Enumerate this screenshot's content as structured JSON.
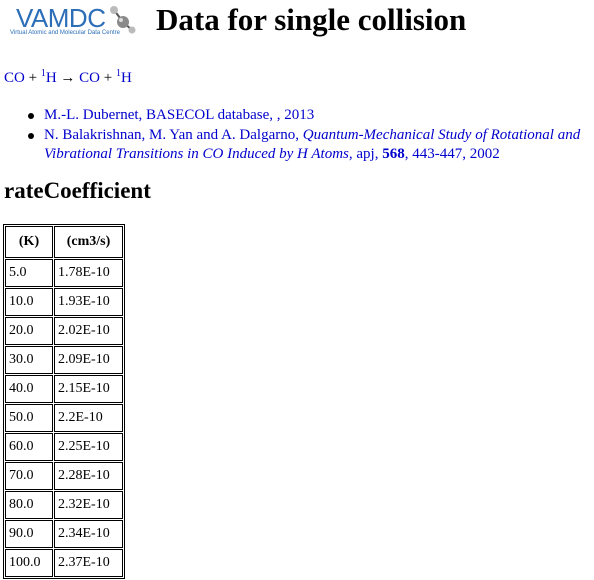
{
  "logo": {
    "text": "VAMDC",
    "subtitle": "Virtual Atomic and Molecular Data Centre"
  },
  "title": "Data for single collision",
  "process": {
    "reactant1": "CO",
    "plus1": "+",
    "sup1": "1",
    "reactant2": "H",
    "arrow": "→",
    "product1": "CO",
    "plus2": "+",
    "sup2": "1",
    "product2": "H"
  },
  "references": [
    {
      "text": "M.-L. Dubernet, BASECOL database, , 2013"
    },
    {
      "authors": "N. Balakrishnan, M. Yan and A. Dalgarno, ",
      "title": "Quantum-Mechanical Study of Rotational and Vibrational Transitions in CO Induced by H Atoms",
      "journal": ", apj, ",
      "volume": "568",
      "pages": ", 443-447, 2002"
    }
  ],
  "section_title": "rateCoefficient",
  "table": {
    "headers": [
      "(K)",
      "(cm3/s)"
    ],
    "rows": [
      [
        "5.0",
        "1.78E-10"
      ],
      [
        "10.0",
        "1.93E-10"
      ],
      [
        "20.0",
        "2.02E-10"
      ],
      [
        "30.0",
        "2.09E-10"
      ],
      [
        "40.0",
        "2.15E-10"
      ],
      [
        "50.0",
        "2.2E-10"
      ],
      [
        "60.0",
        "2.25E-10"
      ],
      [
        "70.0",
        "2.28E-10"
      ],
      [
        "80.0",
        "2.32E-10"
      ],
      [
        "90.0",
        "2.34E-10"
      ],
      [
        "100.0",
        "2.37E-10"
      ]
    ]
  }
}
